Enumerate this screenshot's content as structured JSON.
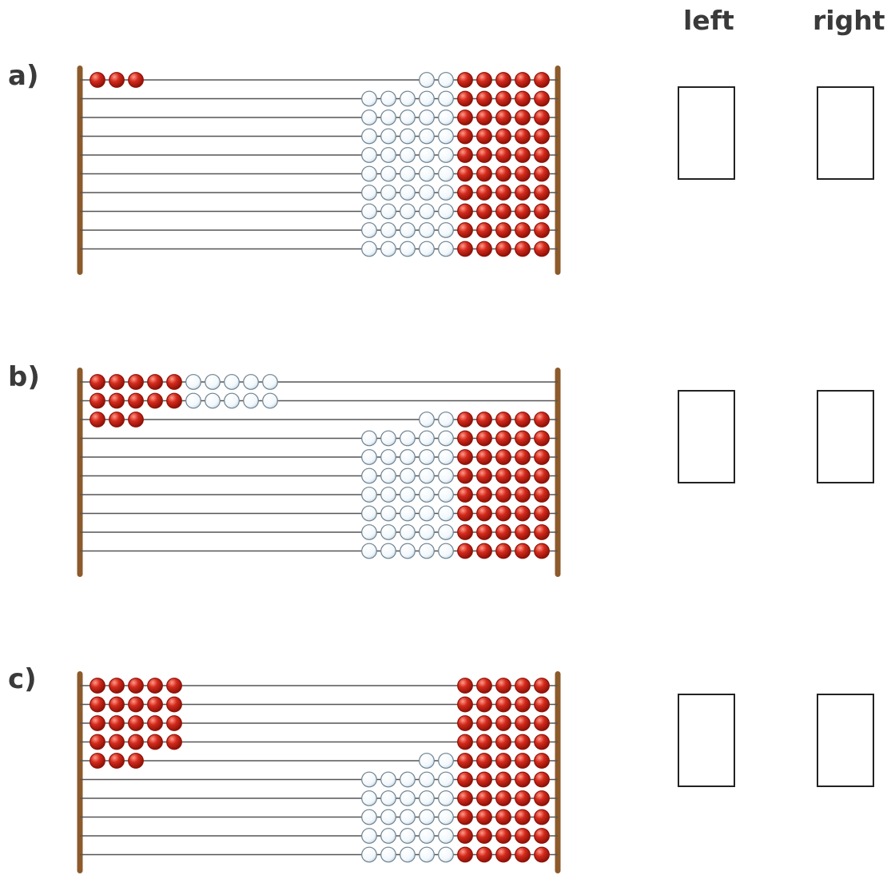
{
  "headers": {
    "left": "left",
    "right": "right"
  },
  "colors": {
    "red_bead": "#d42a1c",
    "red_bead_dark": "#8e1208",
    "white_bead": "#f2f8fc",
    "white_bead_edge": "#6f8290",
    "frame": "#8c5a2b",
    "wire": "#555555"
  },
  "problems": [
    {
      "label": "a)",
      "left_beads_per_row": [
        3,
        0,
        0,
        0,
        0,
        0,
        0,
        0,
        0,
        0
      ],
      "right_beads_per_row": [
        7,
        10,
        10,
        10,
        10,
        10,
        10,
        10,
        10,
        10
      ],
      "answer_left": "",
      "answer_right": ""
    },
    {
      "label": "b)",
      "left_beads_per_row": [
        10,
        10,
        3,
        0,
        0,
        0,
        0,
        0,
        0,
        0
      ],
      "right_beads_per_row": [
        0,
        0,
        7,
        10,
        10,
        10,
        10,
        10,
        10,
        10
      ],
      "answer_left": "",
      "answer_right": ""
    },
    {
      "label": "c)",
      "left_beads_per_row": [
        5,
        5,
        5,
        5,
        3,
        0,
        0,
        0,
        0,
        0
      ],
      "right_beads_per_row": [
        5,
        5,
        5,
        5,
        7,
        10,
        10,
        10,
        10,
        10
      ],
      "answer_left": "",
      "answer_right": ""
    }
  ]
}
